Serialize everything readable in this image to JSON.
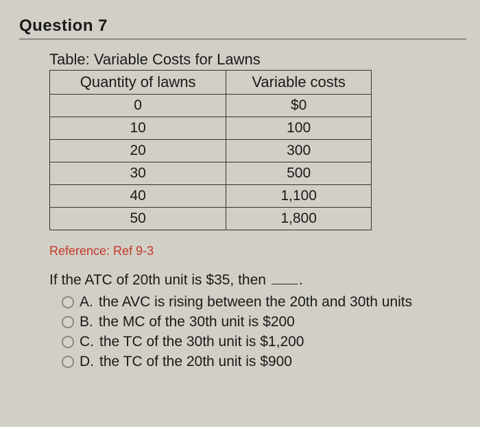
{
  "question_header": "Question 7",
  "table": {
    "title": "Table: Variable Costs for Lawns",
    "columns": [
      "Quantity of lawns",
      "Variable costs"
    ],
    "rows": [
      [
        "0",
        "$0"
      ],
      [
        "10",
        "100"
      ],
      [
        "20",
        "300"
      ],
      [
        "30",
        "500"
      ],
      [
        "40",
        "1,100"
      ],
      [
        "50",
        "1,800"
      ]
    ]
  },
  "reference": "Reference: Ref 9-3",
  "stem_pre": "If the ATC of 20th unit is $35, then ",
  "stem_post": ".",
  "options": [
    {
      "letter": "A.",
      "text": "the AVC is rising between the 20th and 30th units"
    },
    {
      "letter": "B.",
      "text": "the MC of the 30th unit is $200"
    },
    {
      "letter": "C.",
      "text": "the TC of the 30th unit is $1,200"
    },
    {
      "letter": "D.",
      "text": "the TC of the 20th unit is $900"
    }
  ],
  "colors": {
    "page_bg": "#d2cfc6",
    "text": "#1a1a1a",
    "reference": "#c0392b",
    "border": "#333333",
    "header_rule": "#888888"
  }
}
